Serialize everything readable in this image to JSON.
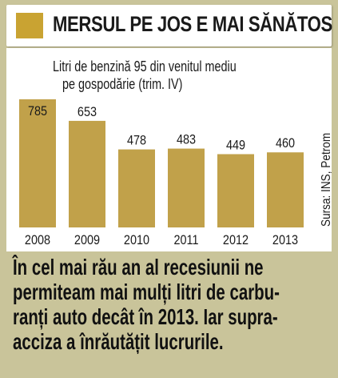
{
  "header": {
    "title": "MERSUL PE JOS E MAI SĂNĂTOS"
  },
  "colors": {
    "bar": "#c1a14a",
    "accent": "#c9a332",
    "background": "#c9c49a",
    "panel": "#ffffff"
  },
  "source": "Sursa: INS, Petrom",
  "chart_data": {
    "type": "bar",
    "title": "Litri de benzină 95 din venitul mediu pe gospodărie (trim. IV)",
    "title_lines": [
      "Litri de benzină 95 din venitul mediu",
      "pe gospodărie (trim. IV)"
    ],
    "categories": [
      "2008",
      "2009",
      "2010",
      "2011",
      "2012",
      "2013"
    ],
    "values": [
      785,
      653,
      478,
      483,
      449,
      460
    ],
    "data_labels": [
      "785",
      "653",
      "478",
      "483",
      "449",
      "460"
    ],
    "ylim": [
      0,
      785
    ],
    "grid": false,
    "legend": "none"
  },
  "caption": {
    "lines": [
      "În cel mai rău an al recesiunii ne",
      "permiteam mai mulți litri de carbu-",
      "ranți auto decât în 2013. Iar supra-",
      "acciza a înrăutățit lucrurile."
    ]
  }
}
